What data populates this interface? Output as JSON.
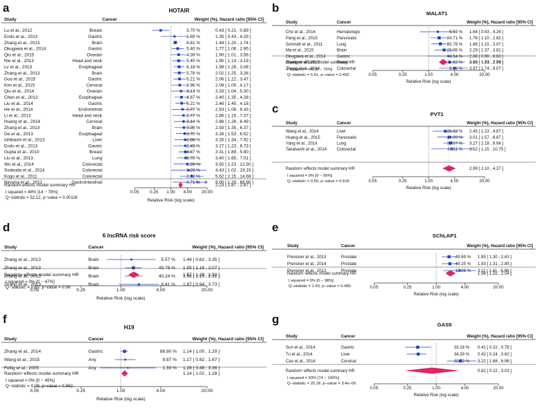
{
  "chart_data": [
    {
      "letter": "a",
      "type": "forest",
      "title": "HOTAIR",
      "headers": {
        "study": "Study",
        "cancer": "Cancer",
        "weight": "Weight (%), Hazard ratio [95% CI]"
      },
      "xlabel": "Relative Risk (log scale)",
      "xticks": [
        0.05,
        0.25,
        1.0,
        4.0,
        20.0
      ],
      "xtick_labels": [
        "0.05",
        "0.25",
        "1.00",
        "4.00",
        "20.00"
      ],
      "xlim": [
        0.05,
        20
      ],
      "rows": [
        {
          "study": "Lu et al., 2012",
          "cancer": "Breast",
          "weight": "3.70 %",
          "ci": "0.43 [ 0.21 , 0.89 ]",
          "hr": 0.43,
          "lo": 0.21,
          "hi": 0.89
        },
        {
          "study": "Endo et al., 2013",
          "cancer": "Gastric",
          "weight": "1.89 %",
          "ci": "1.35 [ 0.43 , 4.29 ]",
          "hr": 1.35,
          "lo": 0.43,
          "hi": 4.29
        },
        {
          "study": "Zhang et al., 2013",
          "cancer": "Brain",
          "weight": "8.81 %",
          "ci": "1.44 [ 1.20 , 1.74 ]",
          "hr": 1.44,
          "lo": 1.2,
          "hi": 1.74
        },
        {
          "study": "Okugawa et al., 2014",
          "cancer": "Gastric",
          "weight": "5.40 %",
          "ci": "1.77 [ 1.06 , 2.95 ]",
          "hr": 1.77,
          "lo": 1.06,
          "hi": 2.95
        },
        {
          "study": "Qiu et al., 2015",
          "cancer": "Ovarian",
          "weight": "4.39 %",
          "ci": "1.90 [ 1.01 , 3.56 ]",
          "hr": 1.9,
          "lo": 1.01,
          "hi": 3.56
        },
        {
          "study": "Nie et al., 2013",
          "cancer": "Head and neck",
          "weight": "5.40 %",
          "ci": "1.90 [ 1.13 , 3.19 ]",
          "hr": 1.9,
          "lo": 1.13,
          "hi": 3.19
        },
        {
          "study": "Lv et al., 2013",
          "cancer": "Esophageal",
          "weight": "6.18 %",
          "ci": "1.99 [ 1.28 , 3.08 ]",
          "hr": 1.99,
          "lo": 1.28,
          "hi": 3.08
        },
        {
          "study": "Zhang et al., 2013",
          "cancer": "Brain",
          "weight": "5.78 %",
          "ci": "2.02 [ 1.25 , 3.26 ]",
          "hr": 2.02,
          "lo": 1.25,
          "hi": 3.26
        },
        {
          "study": "Guo et al., 2015",
          "cancer": "Gastric",
          "weight": "5.21 %",
          "ci": "2.06 [ 1.22 , 3.47 ]",
          "hr": 2.06,
          "lo": 1.22,
          "hi": 3.47
        },
        {
          "study": "Kim et al., 2015",
          "cancer": "Cervical",
          "weight": "3.96 %",
          "ci": "2.09 [ 1.05 , 4.17 ]",
          "hr": 2.09,
          "lo": 1.05,
          "hi": 4.17
        },
        {
          "study": "Qiu et al., 2014",
          "cancer": "Ovarian",
          "weight": "3.14 %",
          "ci": "2.33 [ 1.04 , 5.30 ]",
          "hr": 2.33,
          "lo": 1.04,
          "hi": 5.3
        },
        {
          "study": "Chen et al., 2013",
          "cancer": "Esophageal",
          "weight": "4.87 %",
          "ci": "2.40 [ 1.35 , 4.28 ]",
          "hr": 2.4,
          "lo": 1.35,
          "hi": 4.28
        },
        {
          "study": "Liu et al., 2014",
          "cancer": "Gastric",
          "weight": "5.21 %",
          "ci": "2.46 [ 1.45 , 4.18 ]",
          "hr": 2.46,
          "lo": 1.45,
          "hi": 4.18
        },
        {
          "study": "He et al., 2014",
          "cancer": "Endometrial",
          "weight": "2.77 %",
          "ci": "2.63 [ 1.08 , 6.43 ]",
          "hr": 2.63,
          "lo": 1.08,
          "hi": 6.43
        },
        {
          "study": "Li et al., 2013",
          "cancer": "Head and neck",
          "weight": "2.77 %",
          "ci": "2.86 [ 1.15 , 7.07 ]",
          "hr": 2.86,
          "lo": 1.15,
          "hi": 7.07
        },
        {
          "study": "Huang et al., 2014",
          "cancer": "Cervical",
          "weight": "3.14 %",
          "ci": "2.86 [ 1.26 , 6.49 ]",
          "hr": 2.86,
          "lo": 1.26,
          "hi": 6.49
        },
        {
          "study": "Zhang et al., 2013",
          "cancer": "Brain",
          "weight": "3.35 %",
          "ci": "2.93 [ 1.35 , 6.37 ]",
          "hr": 2.93,
          "lo": 1.35,
          "hi": 6.37
        },
        {
          "study": "Ge et al., 2013",
          "cancer": "Esophageal",
          "weight": "3.70 %",
          "ci": "3.16 [ 1.53 , 6.52 ]",
          "hr": 3.16,
          "lo": 1.53,
          "hi": 6.52
        },
        {
          "study": "Ishibashi et al., 2013",
          "cancer": "Liver",
          "weight": "2.85 %",
          "ci": "3.26 [ 1.34 , 7.92 ]",
          "hr": 3.26,
          "lo": 1.34,
          "hi": 7.92
        },
        {
          "study": "Endo et al., 2013",
          "cancer": "Gastric",
          "weight": "2.45 %",
          "ci": "3.27 [ 1.23 , 8.73 ]",
          "hr": 3.27,
          "lo": 1.23,
          "hi": 8.73
        },
        {
          "study": "Gupta et al., 2010",
          "cancer": "Breast",
          "weight": "4.87 %",
          "ci": "3.31 [ 1.89 , 5.80 ]",
          "hr": 3.31,
          "lo": 1.89,
          "hi": 5.8
        },
        {
          "study": "Liu et al., 2013",
          "cancer": "Lung",
          "weight": "3.70 %",
          "ci": "3.40 [ 1.65 , 7.01 ]",
          "hr": 3.4,
          "lo": 1.65,
          "hi": 7.01
        },
        {
          "study": "Wu et al., 2014",
          "cancer": "Colorectal",
          "weight": "1.89 %",
          "ci": "3.92 [ 1.23 , 12.50 ]",
          "hr": 3.92,
          "lo": 1.23,
          "hi": 12.5
        },
        {
          "study": "Svoboda et al., 2014",
          "cancer": "Colorectal",
          "weight": "1.26 %",
          "ci": "4.43 [ 1.02 , 19.19 ]",
          "hr": 4.43,
          "lo": 1.02,
          "hi": 19.19
        },
        {
          "study": "Kogo et al., 2011",
          "cancer": "Colorectal",
          "weight": "2.52 %",
          "ci": "5.62 [ 2.15 , 14.69 ]",
          "hr": 5.62,
          "lo": 2.15,
          "hi": 14.69
        },
        {
          "study": "Ninuma et al., 2012",
          "cancer": "Gastrointestinal",
          "weight": "0.71 %",
          "ci": "9.00 [ 1.20 , 68.90 ]",
          "hr": 9.0,
          "lo": 1.2,
          "hi": 68.9
        }
      ],
      "summary": {
        "label": "Random-effects model summary HR",
        "ci": "2.23 [ 1.87 , 2.67 ]",
        "hr": 2.23,
        "lo": 1.87,
        "hi": 2.67
      },
      "stats": [
        "I squared = 48% [14 − 78%]",
        "Q−statistic = 52.12, p−value = 0.00116"
      ]
    },
    {
      "letter": "b",
      "type": "forest",
      "title": "MALAT1",
      "headers": {
        "study": "Study",
        "cancer": "Cancer",
        "weight": "Weight (%), Hazard ratio [95% CI]"
      },
      "xlabel": "Relative Risk (log scale)",
      "xticks": [
        0.05,
        0.25,
        1.0,
        4.0,
        20.0
      ],
      "xtick_labels": [
        "0.05",
        "0.25",
        "1.00",
        "4.00",
        "20.00"
      ],
      "xlim": [
        0.05,
        20
      ],
      "rows": [
        {
          "study": "Cho et al., 2014",
          "cancer": "Hematologic",
          "weight": "5.93 %",
          "ci": "1.64 [ 0.63 , 4.26 ]",
          "hr": 1.64,
          "lo": 0.63,
          "hi": 4.26
        },
        {
          "study": "Pang et al., 2015",
          "cancer": "Pancreatic",
          "weight": "24.71 %",
          "ci": "1.76 [ 1.10 , 2.82 ]",
          "hr": 1.76,
          "lo": 1.1,
          "hi": 2.82
        },
        {
          "study": "Schmidt et al., 2011",
          "cancer": "Lung",
          "weight": "22.78 %",
          "ci": "1.88 [ 1.15 , 3.07 ]",
          "hr": 1.88,
          "lo": 1.15,
          "hi": 3.07
        },
        {
          "study": "Ma et al., 2015",
          "cancer": "Brain",
          "weight": "21.06 %",
          "ci": "2.29 [ 1.37 , 3.81 ]",
          "hr": 2.29,
          "lo": 1.37,
          "hi": 3.81
        },
        {
          "study": "Okugawa et al., 2014",
          "cancer": "Gastric",
          "weight": "4.54 %",
          "ci": "2.88 [ 0.96 , 8.63 ]",
          "hr": 2.88,
          "lo": 0.96,
          "hi": 8.63
        },
        {
          "study": "Zhang et al., 2015",
          "cancer": "Renal",
          "weight": "11.62 %",
          "ci": "3.09 [ 1.81 , 7.03 ]",
          "hr": 3.09,
          "lo": 1.81,
          "hi": 7.03
        },
        {
          "study": "Zheng et al., 2014",
          "cancer": "Colorectal",
          "weight": "9.36 %",
          "ci": "3.97 [ 1.74 , 8.07 ]",
          "hr": 3.97,
          "lo": 1.74,
          "hi": 8.07
        }
      ],
      "summary": {
        "label": "Random−effects model summary HR",
        "ci": "2.19 [ 1.73 , 2.76 ]",
        "hr": 2.19,
        "lo": 1.73,
        "hi": 2.76
      },
      "stats": [
        "I squared = 0% [0 − 79%]",
        "Q−statistic = 5.41, p−value = 0.492"
      ]
    },
    {
      "letter": "c",
      "type": "forest",
      "title": "PVT1",
      "headers": {
        "study": "Study",
        "cancer": "Cancer",
        "weight": "Weight (%), Hazard ratio [95% CI]"
      },
      "xlabel": "Relative Risk (log scale)",
      "xticks": [
        0.05,
        0.25,
        1.0,
        4.0,
        20.0
      ],
      "xtick_labels": [
        "0.05",
        "0.25",
        "1.00",
        "4.00",
        "20.00"
      ],
      "xlim": [
        0.05,
        20
      ],
      "rows": [
        {
          "study": "Wang et al., 2014",
          "cancer": "Liver",
          "weight": "26.82 %",
          "ci": "2.45 [ 1.23 , 4.87 ]",
          "hr": 2.45,
          "lo": 1.23,
          "hi": 4.87
        },
        {
          "study": "Huang et al., 2015",
          "cancer": "Pancreatic",
          "weight": "24.00 %",
          "ci": "3.01 [ 1.57 , 6.67 ]",
          "hr": 3.01,
          "lo": 1.57,
          "hi": 6.67
        },
        {
          "study": "Yang et al., 2014",
          "cancer": "Lung",
          "weight": "39.07 %",
          "ci": "3.27 [ 2.18 , 6.94 ]",
          "hr": 3.27,
          "lo": 2.18,
          "hi": 6.94
        },
        {
          "study": "Takahashi et al., 2014",
          "cancer": "Colorectal",
          "weight": "10.11 %",
          "ci": "3.52 [ 1.15 , 10.75 ]",
          "hr": 3.52,
          "lo": 1.15,
          "hi": 10.75
        }
      ],
      "summary": {
        "label": "Random−effects model summary HR",
        "ci": "2.99 [ 2.10 , 4.27 ]",
        "hr": 2.99,
        "lo": 2.1,
        "hi": 4.27
      },
      "stats": [
        "I squared = 0% [0 − 56%]",
        "Q−statistic = 0.50, p−value = 0.918"
      ]
    },
    {
      "letter": "d",
      "type": "forest",
      "title": "6 lncRNA risk score",
      "headers": {
        "study": "Study",
        "cancer": "Cancer",
        "weight": "Weight (%), Hazard ratio [95% CI]"
      },
      "xlabel": "Relative Risk (log scale)",
      "xticks": [
        0.05,
        0.25,
        1.0,
        4.0,
        20.0
      ],
      "xtick_labels": [
        "0.05",
        "0.25",
        "1.00",
        "4.00",
        "20.00"
      ],
      "xlim": [
        0.05,
        20
      ],
      "rows": [
        {
          "study": "Zhang et al., 2013",
          "cancer": "Brain",
          "weight": "5.57 %",
          "ci": "1.44 [ 0.62 , 3.35 ]",
          "hr": 1.44,
          "lo": 0.62,
          "hi": 3.35
        },
        {
          "study": "Zhang et al., 2013",
          "cancer": "Brain",
          "weight": "45.78 %",
          "ci": "1.55 [ 1.16 , 2.07 ]",
          "hr": 1.55,
          "lo": 1.16,
          "hi": 2.07
        },
        {
          "study": "Zhang et al., 2013",
          "cancer": "Brain",
          "weight": "40.24 %",
          "ci": "1.56 [ 1.15 , 2.12 ]",
          "hr": 1.56,
          "lo": 1.15,
          "hi": 2.12
        },
        {
          "study": "Zhang et al., 2013",
          "cancer": "Brain",
          "weight": "8.41 %",
          "ci": "1.87 [ 0.94 , 3.73 ]",
          "hr": 1.87,
          "lo": 0.94,
          "hi": 3.73
        }
      ],
      "summary": {
        "label": "Random−effects model summary HR",
        "ci": "1.57 [ 1.29 , 1.92 ]",
        "hr": 1.57,
        "lo": 1.29,
        "hi": 1.92
      },
      "stats": [
        "I squared = 0% [0 − 47%]",
        "Q−statistic = 0.30, p−value = 0.96"
      ]
    },
    {
      "letter": "e",
      "type": "forest",
      "title": "SChLAP1",
      "headers": {
        "study": "Study",
        "cancer": "Cancer",
        "weight": "Weight (%), Hazard ratio [95% CI]"
      },
      "xlabel": "Relative Risk (log scale)",
      "xticks": [
        0.05,
        0.25,
        1.0,
        4.0,
        20.0
      ],
      "xtick_labels": [
        "0.05",
        "0.25",
        "1.00",
        "4.00",
        "20.00"
      ],
      "xlim": [
        0.05,
        20
      ],
      "rows": [
        {
          "study": "Prensner et al., 2013",
          "cancer": "Prostate",
          "weight": "49.69 %",
          "ci": "1.85 [ 1.30 , 2.63 ]",
          "hr": 1.85,
          "lo": 1.3,
          "hi": 2.63
        },
        {
          "study": "Prensner et al., 2014",
          "cancer": "Prostate",
          "weight": "40.25 %",
          "ci": "1.93 [ 1.31 , 2.85 ]",
          "hr": 1.93,
          "lo": 1.31,
          "hi": 2.85
        },
        {
          "study": "Prensner et al., 2013",
          "cancer": "Prostate",
          "weight": "10.06 %",
          "ci": "3.11 [ 1.41 , 6.86 ]",
          "hr": 3.11,
          "lo": 1.41,
          "hi": 6.86
        }
      ],
      "summary": {
        "label": "Random−effects model summary HR",
        "ci": "1.98 [ 1.55 , 2.54 ]",
        "hr": 1.98,
        "lo": 1.55,
        "hi": 2.54
      },
      "stats": [
        "I squared = 0% [0 − 98%]",
        "Q−statistic = 1.43, p−value = 0.489"
      ]
    },
    {
      "letter": "f",
      "type": "forest",
      "title": "H19",
      "headers": {
        "study": "Study",
        "cancer": "Cancer",
        "weight": "Weight (%), Hazard ratio [95% CI]"
      },
      "xlabel": "Relative Risk (log scale)",
      "xticks": [
        0.05,
        0.25,
        1.0,
        4.0,
        20.0
      ],
      "xtick_labels": [
        "0.05",
        "0.25",
        "1.00",
        "4.00",
        "20.00"
      ],
      "xlim": [
        0.05,
        20
      ],
      "rows": [
        {
          "study": "Zhang et al., 2014",
          "cancer": "Gastric",
          "weight": "88.80 %",
          "ci": "1.14 [ 1.00 , 1.29 ]",
          "hr": 1.14,
          "lo": 1.0,
          "hi": 1.29
        },
        {
          "study": "Wang et al., 2015",
          "cancer": "Any",
          "weight": "9.87 %",
          "ci": "1.17 [ 0.82 , 1.67 ]",
          "hr": 1.17,
          "lo": 0.82,
          "hi": 1.67
        },
        {
          "study": "Fellig et al., 2005",
          "cancer": "Any",
          "weight": "1.33 %",
          "ci": "1.28 [ 0.49 , 3.36 ]",
          "hr": 1.28,
          "lo": 0.49,
          "hi": 3.36
        }
      ],
      "summary": {
        "label": "Random−effects model summary HR",
        "ci": "1.14 [ 1.02 , 1.28 ]",
        "hr": 1.14,
        "lo": 1.02,
        "hi": 1.28
      },
      "stats": [
        "I squared = 0% [0 − 45%]",
        "Q−statistic = 0.08, p−value = 0.962"
      ]
    },
    {
      "letter": "g",
      "type": "forest",
      "title": "GAS5",
      "headers": {
        "study": "Study",
        "cancer": "Cancer",
        "weight": "Weight (%), Hazard ratio [95% CI]"
      },
      "xlabel": "Relative Risk (log scale)",
      "xticks": [
        0.05,
        0.25,
        1.0,
        4.0,
        20.0
      ],
      "xtick_labels": [
        "0.05",
        "0.25",
        "1.00",
        "4.00",
        "20.00"
      ],
      "xlim": [
        0.05,
        20
      ],
      "rows": [
        {
          "study": "Sun et al., 2014",
          "cancer": "Gastric",
          "weight": "33.18 %",
          "ci": "0.41 [ 0.22 , 0.78 ]",
          "hr": 0.41,
          "lo": 0.22,
          "hi": 0.78
        },
        {
          "study": "Tu et al., 2014",
          "cancer": "Liver",
          "weight": "34.29 %",
          "ci": "0.42 [ 0.24 , 0.62 ]",
          "hr": 0.42,
          "lo": 0.24,
          "hi": 0.62
        },
        {
          "study": "Cao et al., 2014",
          "cancer": "Cervical",
          "weight": "32.53 %",
          "ci": "3.22 [ 1.68 , 6.96 ]",
          "hr": 3.22,
          "lo": 1.68,
          "hi": 6.96
        }
      ],
      "summary": {
        "label": "Random−effects model summary HR",
        "ci": "0.81 [ 0.22 , 3.03 ]",
        "hr": 0.81,
        "lo": 0.22,
        "hi": 3.03
      },
      "stats": [
        "I squared = 93% [74 − 100%]",
        "Q−statistic = 25.18, p−value = 3.4e−06"
      ]
    }
  ],
  "colors": {
    "point": "#1f3fbf",
    "line": "#1f3fbf",
    "summary": "#e0245e",
    "text": "#111111",
    "rule": "#333333"
  }
}
